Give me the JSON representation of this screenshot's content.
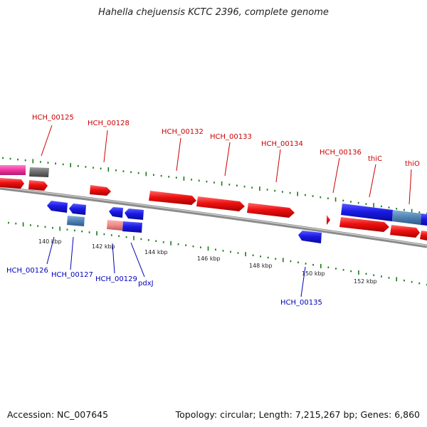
{
  "title": "Hahella chejuensis KCTC 2396, complete genome",
  "footer": {
    "accession": "Accession: NC_007645",
    "topology": "Topology: circular; Length: 7,215,267 bp; Genes: 6,860"
  },
  "colors": {
    "forward_gene": "#ee1111",
    "reverse_gene": "#1a1ae6",
    "forward_label": "#cc0000",
    "reverse_label": "#0000bb",
    "tick": "#1a7a1a",
    "backbone": "#888888"
  },
  "scale_labels": [
    "140 kbp",
    "142 kbp",
    "144 kbp",
    "146 kbp",
    "148 kbp",
    "150 kbp",
    "152 kbp"
  ],
  "forward_labels": [
    "HCH_00125",
    "HCH_00128",
    "HCH_00132",
    "HCH_00133",
    "HCH_00134",
    "HCH_00136",
    "thiC",
    "thiO"
  ],
  "reverse_labels": [
    "HCH_00126",
    "HCH_00127",
    "HCH_00129",
    "pdxJ",
    "HCH_00135"
  ]
}
